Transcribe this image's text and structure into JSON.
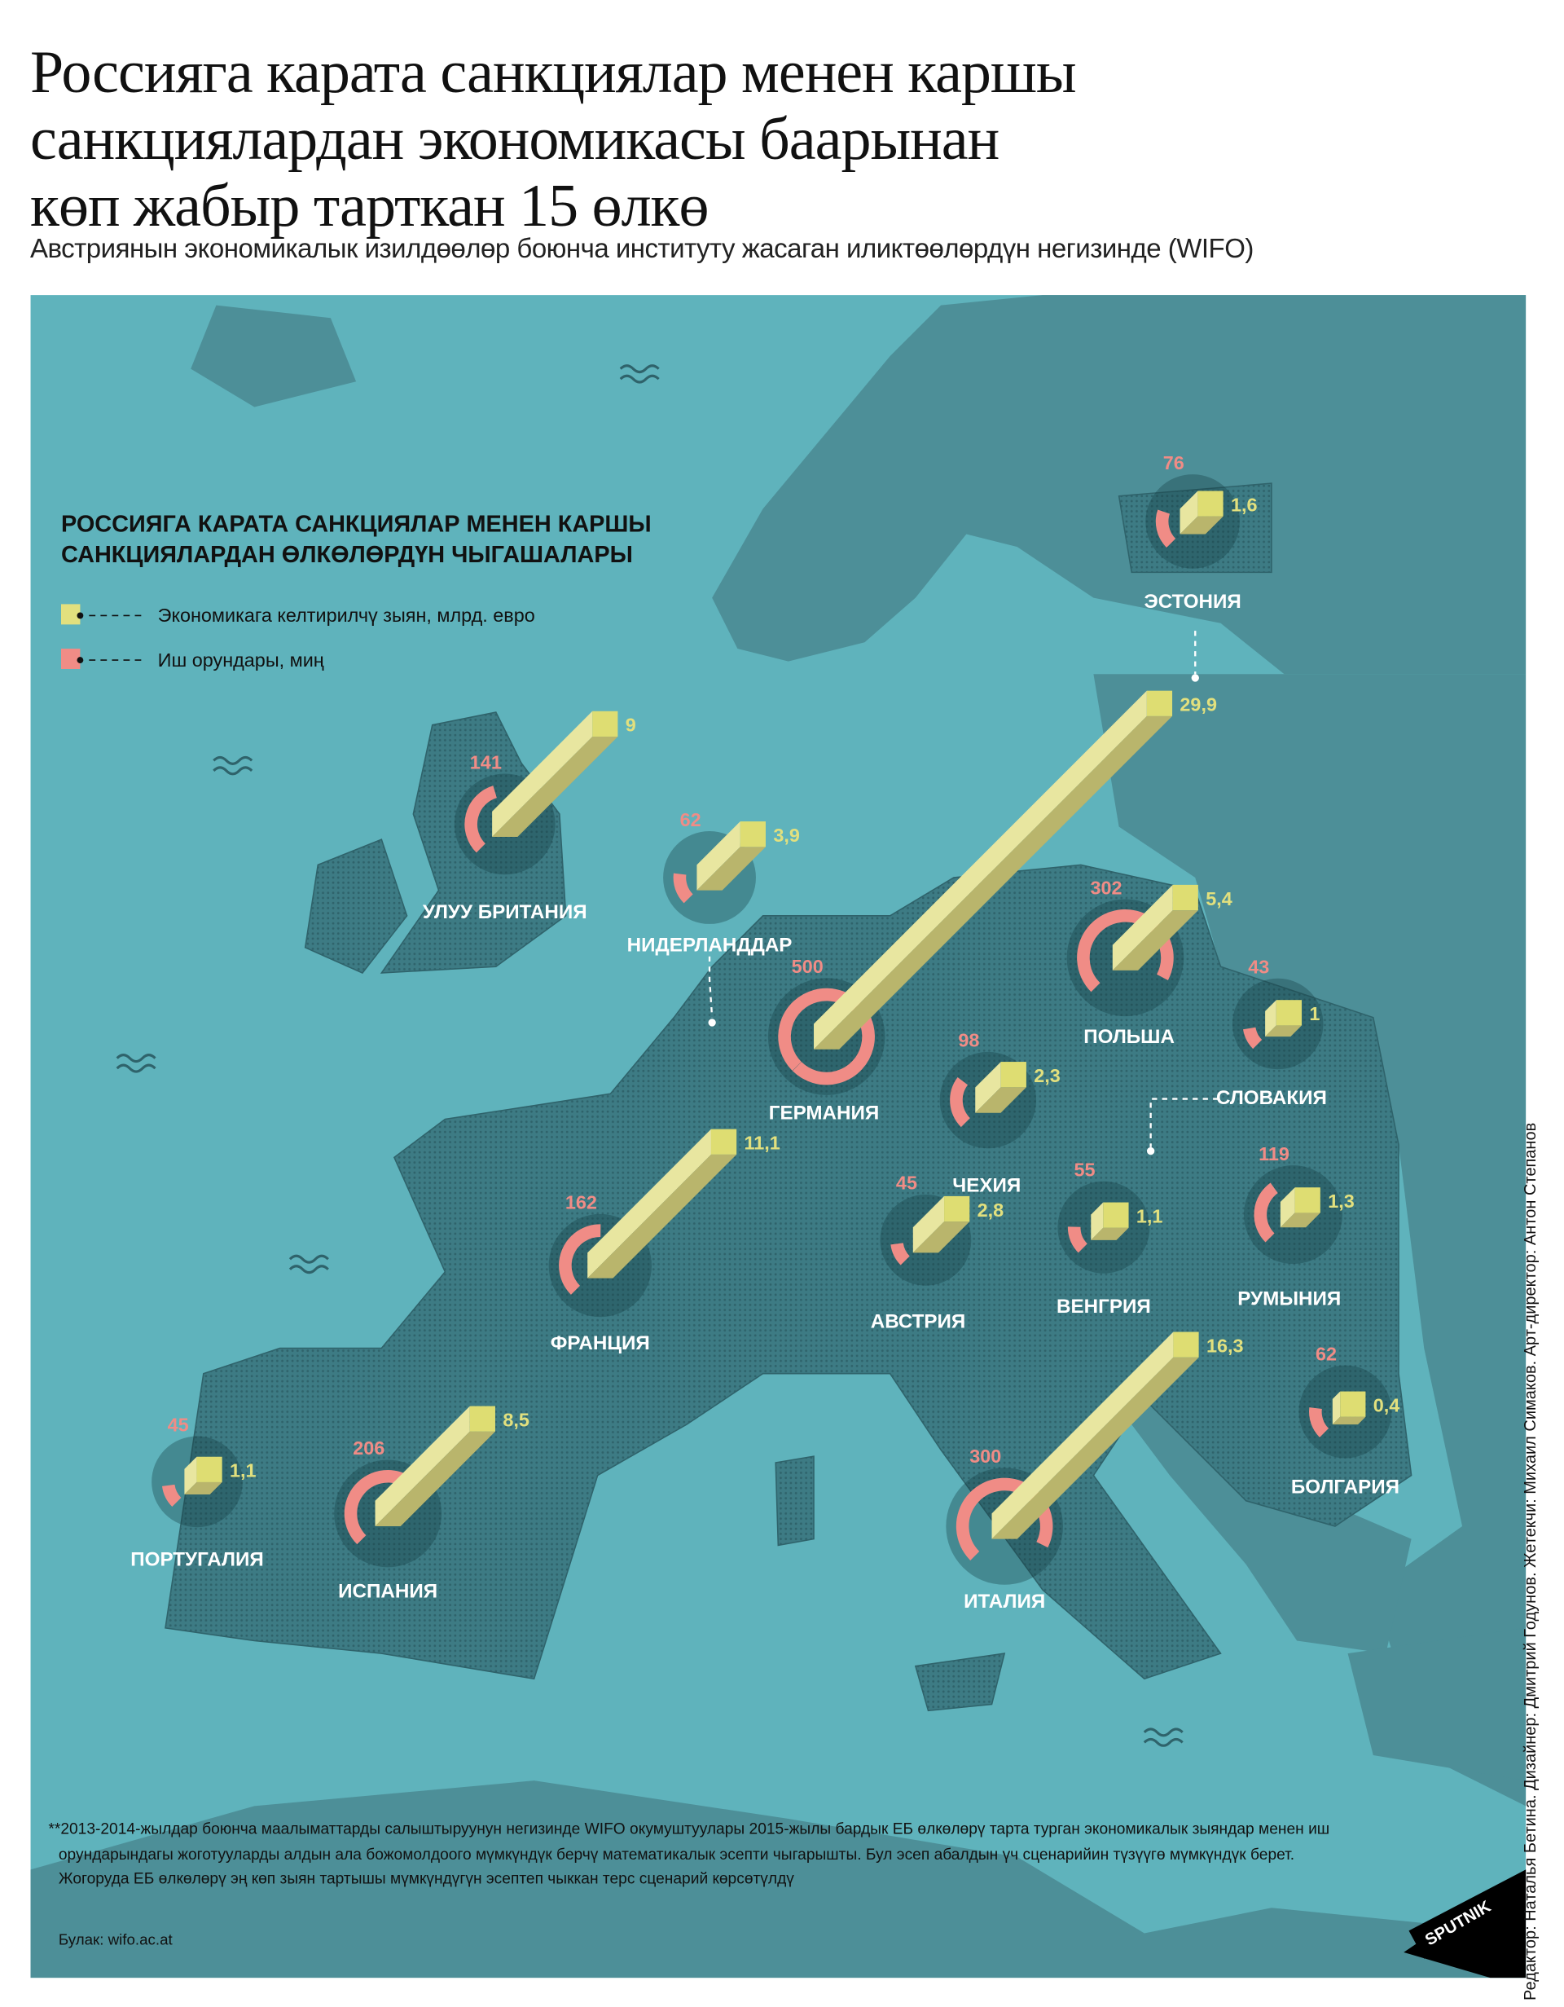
{
  "header": {
    "title_lines": [
      "Россияга карата санкциялар менен каршы",
      "санкциялардан экономикасы баарынан",
      "көп жабыр тарткан 15 өлкө"
    ],
    "subtitle": "Австриянын экономикалык изилдөөлөр боюнча институту жасаган иликтөөлөрдүн негизинде (WIFO)"
  },
  "legend": {
    "title_lines": [
      "РОССИЯГА КАРАТА САНКЦИЯЛАР МЕНЕН КАРШЫ",
      "САНКЦИЯЛАРДАН ӨЛКӨЛӨРДҮН ЧЫГАШАЛАРЫ"
    ],
    "items": [
      {
        "label": "Экономикага келтирилчү зыян, млрд. евро",
        "color": "#e2e07e"
      },
      {
        "label": "Иш орундары, миң",
        "color": "#f08c86"
      }
    ]
  },
  "colors": {
    "sea": "#5fb3bc",
    "land": "#4d8f98",
    "eu_land": "#3d7b84",
    "economy": "#e2e07e",
    "jobs": "#f08c86"
  },
  "chart_data": {
    "type": "map-symbols",
    "title": "РОССИЯГА КАРАТА САНКЦИЯЛАР МЕНЕН КАРШЫ САНКЦИЯЛАРДАН ӨЛКӨЛӨРДҮН ЧЫГАШАЛАРЫ",
    "series": [
      {
        "name": "Экономикага келтирилчү зыян, млрд. евро",
        "key": "economy"
      },
      {
        "name": "Иш орундары, миң",
        "key": "jobs"
      }
    ],
    "countries": [
      {
        "name": "ЭСТОНИЯ",
        "economy": 1.6,
        "economy_label": "1,6",
        "jobs": 76,
        "jobs_label": "76"
      },
      {
        "name": "УЛУУ БРИТАНИЯ",
        "economy": 9,
        "economy_label": "9",
        "jobs": 141,
        "jobs_label": "141"
      },
      {
        "name": "НИДЕРЛАНДДАР",
        "economy": 3.9,
        "economy_label": "3,9",
        "jobs": 62,
        "jobs_label": "62"
      },
      {
        "name": "ГЕРМАНИЯ",
        "economy": 29.9,
        "economy_label": "29,9",
        "jobs": 500,
        "jobs_label": "500"
      },
      {
        "name": "ПОЛЬША",
        "economy": 5.4,
        "economy_label": "5,4",
        "jobs": 302,
        "jobs_label": "302"
      },
      {
        "name": "СЛОВАКИЯ",
        "economy": 1,
        "economy_label": "1",
        "jobs": 43,
        "jobs_label": "43"
      },
      {
        "name": "ЧЕХИЯ",
        "economy": 2.3,
        "economy_label": "2,3",
        "jobs": 98,
        "jobs_label": "98"
      },
      {
        "name": "АВСТРИЯ",
        "economy": 2.8,
        "economy_label": "2,8",
        "jobs": 45,
        "jobs_label": "45"
      },
      {
        "name": "ВЕНГРИЯ",
        "economy": 1.1,
        "economy_label": "1,1",
        "jobs": 55,
        "jobs_label": "55"
      },
      {
        "name": "РУМЫНИЯ",
        "economy": 1.3,
        "economy_label": "1,3",
        "jobs": 119,
        "jobs_label": "119"
      },
      {
        "name": "ФРАНЦИЯ",
        "economy": 11.1,
        "economy_label": "11,1",
        "jobs": 162,
        "jobs_label": "162"
      },
      {
        "name": "БОЛГАРИЯ",
        "economy": 0.4,
        "economy_label": "0,4",
        "jobs": 62,
        "jobs_label": "62"
      },
      {
        "name": "ПОРТУГАЛИЯ",
        "economy": 1.1,
        "economy_label": "1,1",
        "jobs": 45,
        "jobs_label": "45"
      },
      {
        "name": "ИСПАНИЯ",
        "economy": 8.5,
        "economy_label": "8,5",
        "jobs": 206,
        "jobs_label": "206"
      },
      {
        "name": "ИТАЛИЯ",
        "economy": 16.3,
        "economy_label": "16,3",
        "jobs": 300,
        "jobs_label": "300"
      }
    ]
  },
  "footnote": {
    "lines": [
      "**2013-2014-жылдар боюнча маалыматтарды салыштыруунун негизинде WIFO окумуштуулары 2015-жылы бардык ЕБ өлкөлөрү тарта турган экономикалык зыяндар менен иш",
      "орундарындагы жоготууларды алдын ала божомолдоого мүмкүндүк берчү математикалык эсепти чыгарышты. Бул эсеп абалдын үч сценарийин түзүүгө мүмкүндүк берет.",
      "Жогоруда ЕБ өлкөлөрү эң көп зыян тартышы мүмкүндүгүн эсептеп чыккан терс  сценарий көрсөтүлдү"
    ],
    "source": "Булак: wifo.ac.at"
  },
  "logo": {
    "text": "SPUTNIK"
  },
  "credits": "Редактор: Наталья Бетина. Дизайнер: Дмитрий Годунов. Жетекчи: Михаил Симаков. Арт-директор: Антон Степанов"
}
